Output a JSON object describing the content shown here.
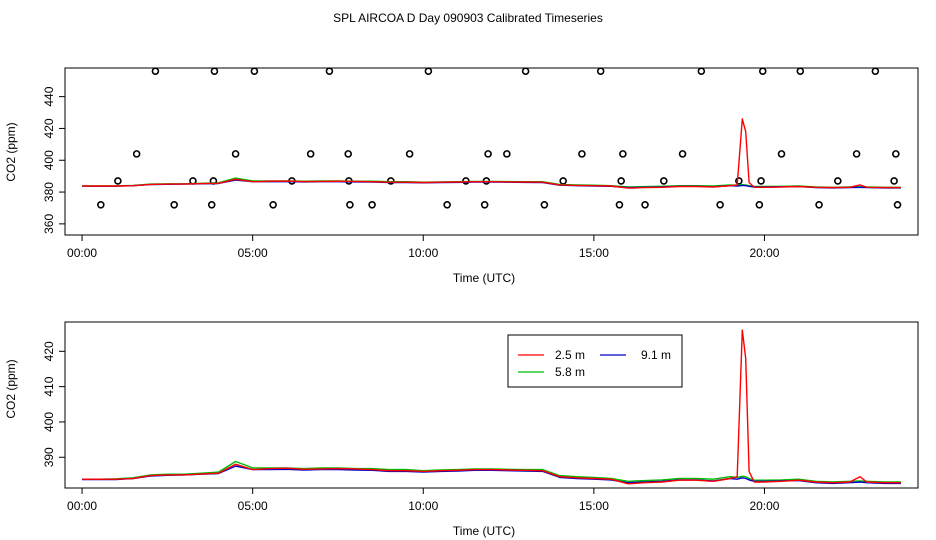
{
  "title": "SPL AIRCOA D  Day 090903  Calibrated Timeseries",
  "colors": {
    "s25": "#ff0000",
    "s58": "#00bb00",
    "s91": "#0000cc",
    "axis": "#000000",
    "bg": "#ffffff"
  },
  "chart_data": [
    {
      "type": "line",
      "panel": "top",
      "title": "",
      "xlabel": "Time (UTC)",
      "ylabel": "CO2 (ppm)",
      "xlim": [
        -0.5,
        24.5
      ],
      "ylim": [
        353,
        458
      ],
      "x_ticks": [
        0,
        5,
        10,
        15,
        20
      ],
      "x_tick_labels": [
        "00:00",
        "05:00",
        "10:00",
        "15:00",
        "20:00"
      ],
      "y_ticks": [
        360,
        380,
        400,
        420,
        440
      ],
      "y_tick_labels": [
        "360",
        "380",
        "400",
        "420",
        "440"
      ],
      "x": [
        0.0,
        0.5,
        1.0,
        1.5,
        2.0,
        2.5,
        3.0,
        3.5,
        4.0,
        4.5,
        5.0,
        5.5,
        6.0,
        6.5,
        7.0,
        7.5,
        8.0,
        8.5,
        9.0,
        9.5,
        10.0,
        10.5,
        11.0,
        11.5,
        12.0,
        12.5,
        13.0,
        13.5,
        14.0,
        14.5,
        15.0,
        15.5,
        16.0,
        16.5,
        17.0,
        17.5,
        18.0,
        18.5,
        19.0,
        19.2,
        19.35,
        19.45,
        19.55,
        19.7,
        20.0,
        20.5,
        21.0,
        21.5,
        22.0,
        22.5,
        22.8,
        23.0,
        23.5,
        24.0
      ],
      "series": [
        {
          "name": "2.5 m",
          "color": "#ff0000",
          "values": [
            383.8,
            383.8,
            383.8,
            384.0,
            384.8,
            385.0,
            385.0,
            385.3,
            385.5,
            388.0,
            386.5,
            386.8,
            386.9,
            386.6,
            386.7,
            386.8,
            386.7,
            386.5,
            386.2,
            386.2,
            386.0,
            386.2,
            386.3,
            386.5,
            386.5,
            386.4,
            386.3,
            386.2,
            384.5,
            384.2,
            384.0,
            383.8,
            382.5,
            382.8,
            383.0,
            383.5,
            383.5,
            383.2,
            384.0,
            384.5,
            426.0,
            418.0,
            386.0,
            383.0,
            383.0,
            383.2,
            383.5,
            383.0,
            382.8,
            383.0,
            384.5,
            383.0,
            382.8,
            382.8
          ]
        },
        {
          "name": "5.8 m",
          "color": "#00bb00",
          "values": [
            383.8,
            383.8,
            383.9,
            384.2,
            385.0,
            385.2,
            385.2,
            385.5,
            385.8,
            388.8,
            387.0,
            387.0,
            387.0,
            386.8,
            387.0,
            387.0,
            386.8,
            386.8,
            386.5,
            386.5,
            386.2,
            386.4,
            386.5,
            386.7,
            386.7,
            386.6,
            386.5,
            386.5,
            384.8,
            384.5,
            384.3,
            384.0,
            383.2,
            383.4,
            383.6,
            384.0,
            384.0,
            383.8,
            384.5,
            384.3,
            384.6,
            384.5,
            384.0,
            383.5,
            383.5,
            383.6,
            383.8,
            383.2,
            383.0,
            383.2,
            383.3,
            383.2,
            383.0,
            383.0
          ]
        },
        {
          "name": "9.1 m",
          "color": "#0000cc",
          "values": [
            383.7,
            383.7,
            383.7,
            384.0,
            384.7,
            384.9,
            385.0,
            385.2,
            385.4,
            387.5,
            386.5,
            386.5,
            386.6,
            386.4,
            386.5,
            386.5,
            386.4,
            386.3,
            386.0,
            386.0,
            385.8,
            386.0,
            386.1,
            386.3,
            386.3,
            386.2,
            386.1,
            386.0,
            384.3,
            384.0,
            383.8,
            383.6,
            382.8,
            383.0,
            383.2,
            383.6,
            383.6,
            383.3,
            384.0,
            383.8,
            384.2,
            384.0,
            383.6,
            383.2,
            383.2,
            383.3,
            383.4,
            382.8,
            382.6,
            382.8,
            383.0,
            382.8,
            382.6,
            382.6
          ]
        }
      ],
      "markers": {
        "symbol": "open-circle",
        "x": [
          0.55,
          1.05,
          1.6,
          2.15,
          2.7,
          3.25,
          3.8,
          3.85,
          3.88,
          4.5,
          5.05,
          5.6,
          6.15,
          6.7,
          7.25,
          7.8,
          7.82,
          7.85,
          8.5,
          9.05,
          9.6,
          10.15,
          10.7,
          11.25,
          11.8,
          11.85,
          11.9,
          12.45,
          13.0,
          13.55,
          14.1,
          14.65,
          15.2,
          15.75,
          15.8,
          15.85,
          16.5,
          17.05,
          17.6,
          18.15,
          18.7,
          19.25,
          19.85,
          19.9,
          19.95,
          20.5,
          21.05,
          21.6,
          22.15,
          22.7,
          23.25,
          23.8,
          23.85,
          23.9
        ],
        "y": [
          372,
          387,
          404,
          456,
          372,
          387,
          372,
          387,
          456,
          404,
          456,
          372,
          387,
          404,
          456,
          404,
          387,
          372,
          372,
          387,
          404,
          456,
          372,
          387,
          372,
          387,
          404,
          404,
          456,
          372,
          387,
          404,
          456,
          372,
          387,
          404,
          372,
          387,
          404,
          456,
          372,
          387,
          372,
          387,
          456,
          404,
          456,
          372,
          387,
          404,
          456,
          387,
          404,
          372
        ]
      }
    },
    {
      "type": "line",
      "panel": "bottom",
      "title": "",
      "xlabel": "Time (UTC)",
      "ylabel": "CO2 (ppm)",
      "xlim": [
        -0.5,
        24.5
      ],
      "ylim": [
        381.3,
        428.3
      ],
      "x_ticks": [
        0,
        5,
        10,
        15,
        20
      ],
      "x_tick_labels": [
        "00:00",
        "05:00",
        "10:00",
        "15:00",
        "20:00"
      ],
      "y_ticks": [
        390,
        400,
        410,
        420
      ],
      "y_tick_labels": [
        "390",
        "400",
        "410",
        "420"
      ],
      "legend": {
        "placement": "top-center",
        "entries": [
          "2.5 m",
          "5.8 m",
          "9.1 m"
        ]
      },
      "x": [
        0.0,
        0.5,
        1.0,
        1.5,
        2.0,
        2.5,
        3.0,
        3.5,
        4.0,
        4.5,
        5.0,
        5.5,
        6.0,
        6.5,
        7.0,
        7.5,
        8.0,
        8.5,
        9.0,
        9.5,
        10.0,
        10.5,
        11.0,
        11.5,
        12.0,
        12.5,
        13.0,
        13.5,
        14.0,
        14.5,
        15.0,
        15.5,
        16.0,
        16.5,
        17.0,
        17.5,
        18.0,
        18.5,
        19.0,
        19.2,
        19.35,
        19.45,
        19.55,
        19.7,
        20.0,
        20.5,
        21.0,
        21.5,
        22.0,
        22.5,
        22.8,
        23.0,
        23.5,
        24.0
      ],
      "series": [
        {
          "name": "2.5 m",
          "color": "#ff0000",
          "values": [
            383.8,
            383.8,
            383.8,
            384.0,
            384.8,
            385.0,
            385.0,
            385.3,
            385.5,
            388.0,
            386.5,
            386.8,
            386.9,
            386.6,
            386.7,
            386.8,
            386.7,
            386.5,
            386.2,
            386.2,
            386.0,
            386.2,
            386.3,
            386.5,
            386.5,
            386.4,
            386.3,
            386.2,
            384.5,
            384.2,
            384.0,
            383.8,
            382.5,
            382.8,
            383.0,
            383.5,
            383.5,
            383.2,
            384.0,
            384.5,
            426.0,
            418.0,
            386.0,
            383.0,
            383.0,
            383.2,
            383.5,
            383.0,
            382.8,
            383.0,
            384.5,
            383.0,
            382.8,
            382.8
          ]
        },
        {
          "name": "5.8 m",
          "color": "#00bb00",
          "values": [
            383.8,
            383.8,
            383.9,
            384.2,
            385.0,
            385.2,
            385.2,
            385.5,
            385.8,
            388.8,
            387.0,
            387.0,
            387.0,
            386.8,
            387.0,
            387.0,
            386.8,
            386.8,
            386.5,
            386.5,
            386.2,
            386.4,
            386.5,
            386.7,
            386.7,
            386.6,
            386.5,
            386.5,
            384.8,
            384.5,
            384.3,
            384.0,
            383.2,
            383.4,
            383.6,
            384.0,
            384.0,
            383.8,
            384.5,
            384.3,
            384.6,
            384.5,
            384.0,
            383.5,
            383.5,
            383.6,
            383.8,
            383.2,
            383.0,
            383.2,
            383.3,
            383.2,
            383.0,
            383.0
          ]
        },
        {
          "name": "9.1 m",
          "color": "#0000cc",
          "values": [
            383.7,
            383.7,
            383.7,
            384.0,
            384.7,
            384.9,
            385.0,
            385.2,
            385.4,
            387.5,
            386.5,
            386.5,
            386.6,
            386.4,
            386.5,
            386.5,
            386.4,
            386.3,
            386.0,
            386.0,
            385.8,
            386.0,
            386.1,
            386.3,
            386.3,
            386.2,
            386.1,
            386.0,
            384.3,
            384.0,
            383.8,
            383.6,
            382.8,
            383.0,
            383.2,
            383.6,
            383.6,
            383.3,
            384.0,
            383.8,
            384.2,
            384.0,
            383.6,
            383.2,
            383.2,
            383.3,
            383.4,
            382.8,
            382.6,
            382.8,
            383.0,
            382.8,
            382.6,
            382.6
          ]
        }
      ]
    }
  ]
}
